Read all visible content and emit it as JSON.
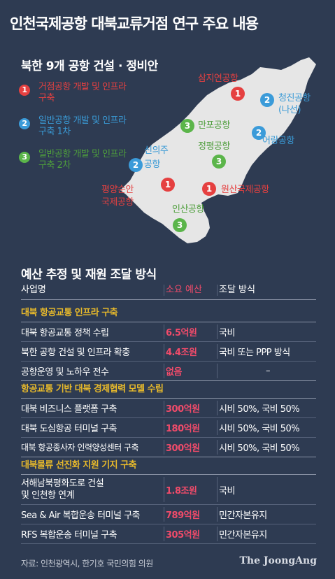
{
  "title": "인천국제공항 대북교류거점 연구 주요 내용",
  "map_section": {
    "subtitle": "북한 9개 공항 건설 · 정비안",
    "legend": [
      {
        "num": "1",
        "text": "거점공항 개발 및 인프라 구축",
        "color": "#e54040"
      },
      {
        "num": "2",
        "text": "일반공항 개발 및 인프라 구축 1차",
        "color": "#3b9bd9"
      },
      {
        "num": "3",
        "text": "일반공항 개발 및 인프라 구축 2차",
        "color": "#5bb54a"
      }
    ],
    "airports": {
      "samjiyon": {
        "label": "삼지연공항",
        "num": "1"
      },
      "chongjin": {
        "label_1": "청진공항",
        "label_2": "(나선)",
        "num": "2"
      },
      "manpo": {
        "label": "만포공항",
        "num": "3"
      },
      "orang": {
        "label": "어랑공항",
        "num": "2"
      },
      "sinuiju": {
        "label_1": "신의주",
        "label_2": "공항",
        "num": "2"
      },
      "jongphyong": {
        "label": "정평공항",
        "num": "3"
      },
      "pyongyang": {
        "label_1": "평양순안",
        "label_2": "국제공항",
        "num": "1"
      },
      "wonsan": {
        "label": "원산국제공항",
        "num": "1"
      },
      "insan": {
        "label": "인산공항",
        "num": "3"
      }
    }
  },
  "budget": {
    "title": "예산 추정 및 재원 조달 방식",
    "headers": {
      "name": "사업명",
      "cost": "소요 예산",
      "funding": "조달 방식"
    },
    "groups": [
      {
        "title": "대북 항공교통 인프라 구축",
        "rows": [
          {
            "name": "대북 항공교통 정책 수립",
            "cost": "6.5억원",
            "funding": "국비"
          },
          {
            "name": "북한 공항 건설 및 인프라 확충",
            "cost": "4.4조원",
            "funding": "국비 또는 PPP 방식"
          },
          {
            "name": "공항운영 및 노하우 전수",
            "cost": "없음",
            "funding": "–"
          }
        ]
      },
      {
        "title": "항공교통 기반 대북 경제협력 모델 수립",
        "rows": [
          {
            "name": "대북 비즈니스 플랫폼 구축",
            "cost": "300억원",
            "funding": "시비 50%, 국비 50%"
          },
          {
            "name": "대북 도심항공 터미널 구축",
            "cost": "180억원",
            "funding": "시비 50%, 국비 50%"
          },
          {
            "name": "대북 항공종사자 인력양성센터 구축",
            "cost": "300억원",
            "funding": "시비 50%, 국비 50%"
          }
        ]
      },
      {
        "title": "대북물류 선진화 지원 기지 구축",
        "rows": [
          {
            "name_1": "서해남북평화도로 건설",
            "name_2": "및 인천항 연계",
            "cost": "1.8조원",
            "funding": "국비"
          },
          {
            "name": "Sea & Air 복합운송 터미널 구축",
            "cost": "789억원",
            "funding": "민간자본유지"
          },
          {
            "name": "RFS 복합운송 터미널 구축",
            "cost": "305억원",
            "funding": "민간자본유지"
          }
        ]
      }
    ]
  },
  "footer": {
    "source": "자료: 인천광역시, 한기호 국민의힘 의원",
    "brand": "The JoongAng"
  }
}
